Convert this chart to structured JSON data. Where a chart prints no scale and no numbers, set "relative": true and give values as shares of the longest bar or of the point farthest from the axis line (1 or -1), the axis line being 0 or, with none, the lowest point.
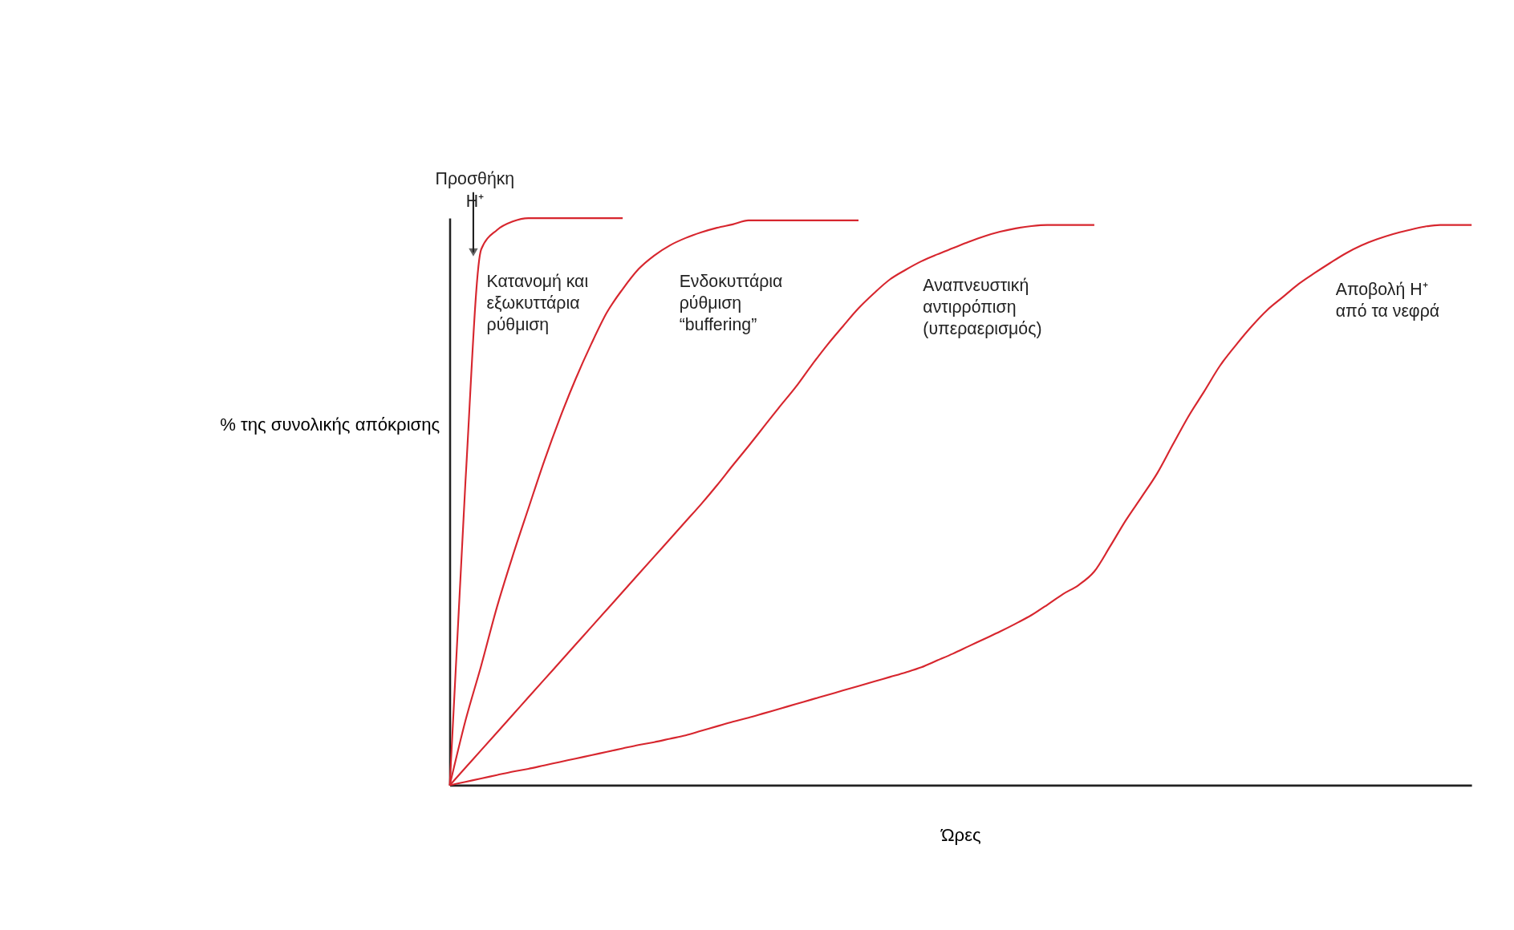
{
  "chart_data": {
    "type": "line",
    "relative": true,
    "xlabel": "Ώρες",
    "ylabel": "% της συνολικής απόκρισης",
    "categories": [
      null,
      null,
      null,
      null,
      null,
      null,
      null,
      null,
      null,
      null,
      null,
      null,
      null,
      null,
      null,
      null,
      null,
      null,
      null,
      null,
      null,
      null,
      null,
      null,
      null,
      null,
      null,
      null,
      null,
      null,
      null,
      null,
      null,
      null,
      null,
      null,
      null,
      null,
      null,
      null,
      null,
      null,
      null,
      null,
      null,
      null,
      null,
      null,
      null,
      null,
      null,
      null,
      null,
      null,
      null,
      null,
      null,
      null,
      null,
      null,
      null,
      null,
      null,
      null,
      null,
      null
    ],
    "series": [
      {
        "color": "#d7262e",
        "values": [
          0,
          0.536,
          0.945,
          0.979,
          0.994,
          1,
          1,
          1,
          1,
          1,
          1,
          1,
          null,
          null,
          null,
          null,
          null,
          null,
          null,
          null,
          null,
          null,
          null,
          null,
          null,
          null,
          null,
          null,
          null,
          null,
          null,
          null,
          null,
          null,
          null,
          null,
          null,
          null,
          null,
          null,
          null,
          null,
          null,
          null,
          null,
          null,
          null,
          null,
          null,
          null,
          null,
          null,
          null,
          null,
          null,
          null,
          null,
          null,
          null,
          null,
          null,
          null,
          null,
          null,
          null,
          null
        ]
      },
      {
        "color": "#d7262e",
        "values": [
          0,
          0.114,
          0.211,
          0.314,
          0.404,
          0.488,
          0.571,
          0.647,
          0.716,
          0.778,
          0.834,
          0.875,
          0.91,
          0.934,
          0.952,
          0.965,
          0.975,
          0.983,
          0.989,
          0.996,
          0.996,
          0.996,
          0.996,
          0.996,
          0.996,
          0.996,
          0.996,
          null,
          null,
          null,
          null,
          null,
          null,
          null,
          null,
          null,
          null,
          null,
          null,
          null,
          null,
          null,
          null,
          null,
          null,
          null,
          null,
          null,
          null,
          null,
          null,
          null,
          null,
          null,
          null,
          null,
          null,
          null,
          null,
          null,
          null,
          null,
          null,
          null,
          null,
          null
        ]
      },
      {
        "color": "#d7262e",
        "values": [
          0,
          0.031,
          0.062,
          0.093,
          0.124,
          0.155,
          0.186,
          0.217,
          0.248,
          0.279,
          0.31,
          0.341,
          0.372,
          0.403,
          0.434,
          0.465,
          0.496,
          0.529,
          0.564,
          0.598,
          0.633,
          0.668,
          0.702,
          0.74,
          0.776,
          0.809,
          0.841,
          0.868,
          0.892,
          0.909,
          0.924,
          0.936,
          0.947,
          0.958,
          0.968,
          0.976,
          0.982,
          0.986,
          0.988,
          0.988,
          0.988,
          0.988,
          null,
          null,
          null,
          null,
          null,
          null,
          null,
          null,
          null,
          null,
          null,
          null,
          null,
          null,
          null,
          null,
          null,
          null,
          null,
          null,
          null,
          null,
          null,
          null
        ]
      },
      {
        "color": "#d7262e",
        "values": [
          0,
          0.006,
          0.012,
          0.018,
          0.024,
          0.029,
          0.035,
          0.041,
          0.047,
          0.053,
          0.059,
          0.065,
          0.071,
          0.076,
          0.082,
          0.088,
          0.096,
          0.104,
          0.112,
          0.119,
          0.127,
          0.135,
          0.143,
          0.151,
          0.159,
          0.167,
          0.175,
          0.183,
          0.191,
          0.199,
          0.208,
          0.22,
          0.232,
          0.245,
          0.258,
          0.271,
          0.285,
          0.3,
          0.318,
          0.337,
          0.353,
          0.377,
          0.421,
          0.467,
          0.508,
          0.55,
          0.601,
          0.651,
          0.695,
          0.74,
          0.776,
          0.809,
          0.838,
          0.861,
          0.884,
          0.903,
          0.921,
          0.938,
          0.952,
          0.963,
          0.972,
          0.979,
          0.985,
          0.988,
          0.988,
          0.988
        ]
      }
    ],
    "annotations": [
      "Κατανομή και\nεξωκυττάρια\nρύθμιση",
      "Ενδοκυττάρια\nρύθμιση\n“buffering”",
      "Αναπνευστική\nαντιρρόπιση\n(υπεραερισμός)",
      "Αποβολή H⁺\nαπό τα νεφρά",
      "Προσθήκη\nH⁺"
    ],
    "legend": false,
    "grid": false
  }
}
